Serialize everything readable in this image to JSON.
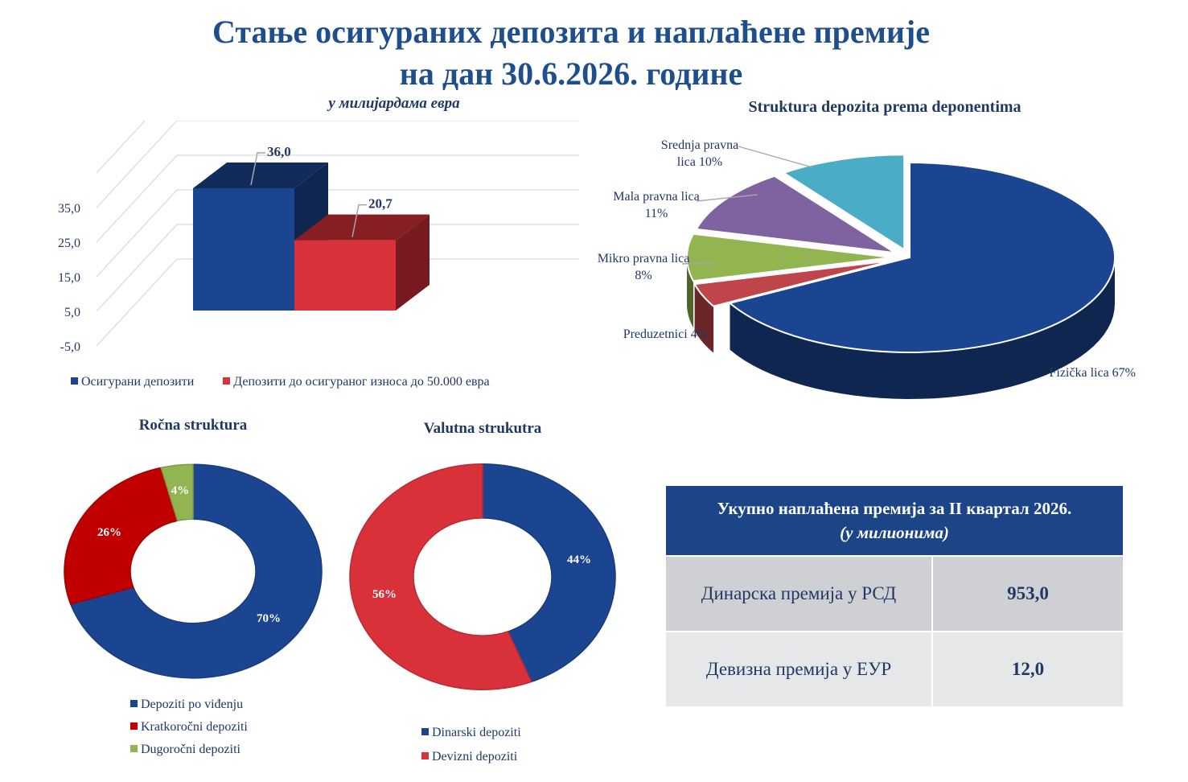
{
  "title": {
    "line1": "Стање осигураних депозита и наплаћене премије",
    "line2": "на дан 30.6.2026. године"
  },
  "bar_subtitle": "у милијардама  евра",
  "pie_title": "Struktura depozita prema deponentima",
  "donut1_title": "Ročna struktura",
  "donut2_title": "Valutna strukutra",
  "table": {
    "header_line1": "Укупно наплаћена премија за II квартал 2026.",
    "header_line2": "(у милионима)",
    "rows": [
      {
        "label": "Динарска премија у РСД",
        "value": "953,0"
      },
      {
        "label": "Девизна премија у ЕУР",
        "value": "12,0"
      }
    ]
  },
  "chart_data": [
    {
      "type": "bar",
      "title": "у милијардама  евра",
      "categories": [
        ""
      ],
      "series": [
        {
          "name": "Осигурани депозити",
          "values": [
            36.0
          ],
          "label": "36,0",
          "color": "#1c4591"
        },
        {
          "name": "Депозити до осигураног износа до 50.000 евра",
          "values": [
            20.7
          ],
          "label": "20,7",
          "color": "#d9313a"
        }
      ],
      "ylim": [
        -5,
        35
      ],
      "yticks": [
        "35,0",
        "25,0",
        "15,0",
        "5,0",
        "-5,0"
      ],
      "grid": true,
      "legend": "bottom"
    },
    {
      "type": "pie",
      "title": "Struktura depozita prema deponentima",
      "slices": [
        {
          "name": "Fizička lica",
          "value": 67,
          "label1": "Fizička lica 67%",
          "label2": "",
          "color": "#1c4591"
        },
        {
          "name": "Preduzetnici",
          "value": 4,
          "label1": "Preduzetnici 4%",
          "label2": "",
          "color": "#c0454a"
        },
        {
          "name": "Mikro pravna lica",
          "value": 8,
          "label1": "Mikro  pravna lica",
          "label2": "8%",
          "color": "#92b552"
        },
        {
          "name": "Mala pravna lica",
          "value": 11,
          "label1": "Mala pravna lica",
          "label2": "11%",
          "color": "#7f62a0"
        },
        {
          "name": "Srednja pravna lica",
          "value": 10,
          "label1": "Srednja pravna",
          "label2": "lica 10%",
          "color": "#4bacc6"
        }
      ]
    },
    {
      "type": "pie",
      "title": "Ročna struktura",
      "slices": [
        {
          "name": "Depoziti po viđenju",
          "value": 70,
          "label": "70%",
          "color": "#1c4591"
        },
        {
          "name": "Kratkoročni depoziti",
          "value": 26,
          "label": "26%",
          "color": "#c00000"
        },
        {
          "name": "Dugoročni depoziti",
          "value": 4,
          "label": "4%",
          "color": "#92b552"
        }
      ],
      "legend": "bottom"
    },
    {
      "type": "pie",
      "title": "Valutna strukutra",
      "slices": [
        {
          "name": "Dinarski depoziti",
          "value": 44,
          "label": "44%",
          "color": "#1c4591"
        },
        {
          "name": "Devizni depoziti",
          "value": 56,
          "label": "56%",
          "color": "#d9313a"
        }
      ],
      "legend": "bottom"
    }
  ]
}
